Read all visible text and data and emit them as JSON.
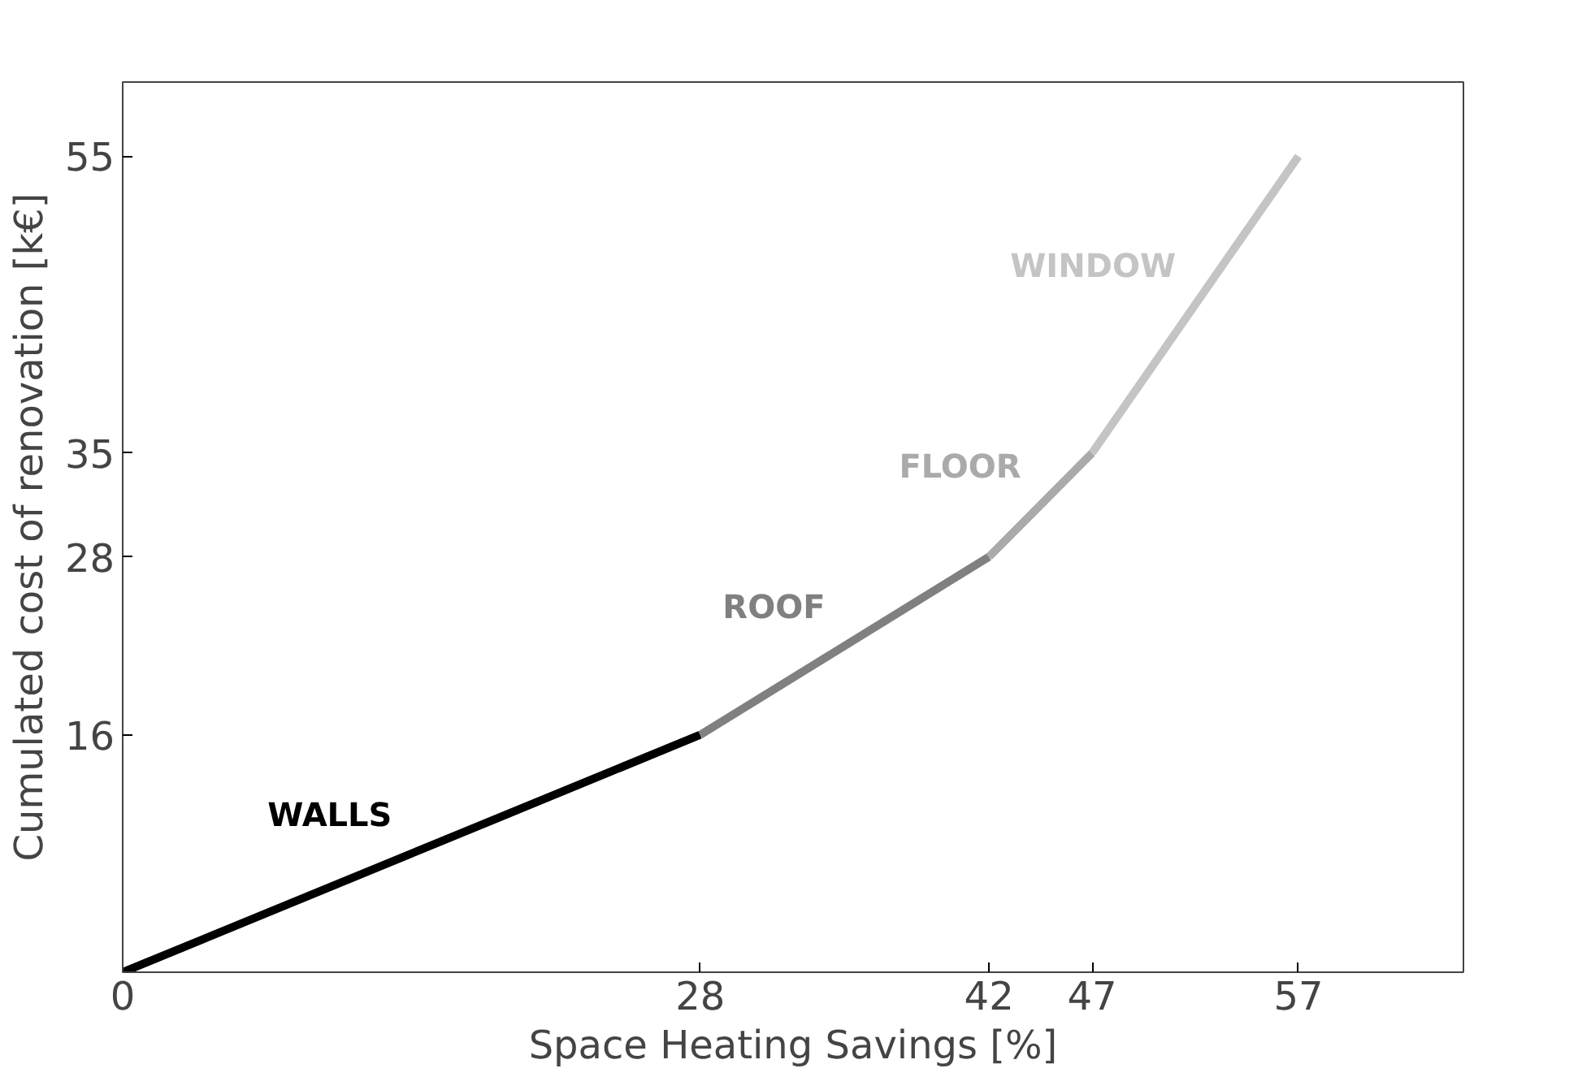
{
  "chart_data": {
    "type": "line",
    "xlabel": "Space Heating Savings [%]",
    "ylabel": "Cumulated cost of renovation [k€]",
    "xlim": [
      0,
      65
    ],
    "ylim": [
      0,
      60
    ],
    "xticks": [
      0,
      28,
      42,
      47,
      57
    ],
    "yticks": [
      16,
      28,
      35,
      55
    ],
    "grid": false,
    "marker": "none",
    "line_style": "solid",
    "series": [
      {
        "name": "WALLS",
        "color": "#000000",
        "x": [
          0,
          28
        ],
        "values": [
          0,
          16
        ]
      },
      {
        "name": "ROOF",
        "color": "#808080",
        "x": [
          28,
          42
        ],
        "values": [
          16,
          28
        ]
      },
      {
        "name": "FLOOR",
        "color": "#aaaaaa",
        "x": [
          42,
          47
        ],
        "values": [
          28,
          35
        ]
      },
      {
        "name": "WINDOW",
        "color": "#c4c4c4",
        "x": [
          47,
          57
        ],
        "values": [
          35,
          55
        ]
      }
    ]
  }
}
